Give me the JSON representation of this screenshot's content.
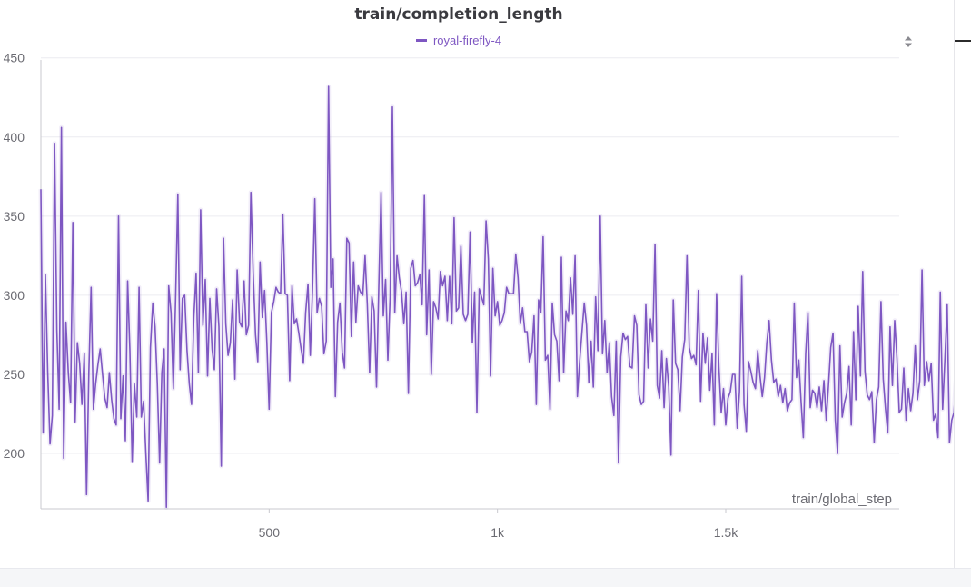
{
  "chart_data": {
    "type": "line",
    "title": "train/completion_length",
    "xlabel": "train/global_step",
    "ylabel": "",
    "xlim": [
      0,
      1880
    ],
    "ylim": [
      165,
      455
    ],
    "x_ticks": [
      500,
      1000,
      1500
    ],
    "x_tick_labels": [
      "500",
      "1k",
      "1.5k"
    ],
    "y_ticks": [
      200,
      250,
      300,
      350,
      400,
      450
    ],
    "y_tick_labels": [
      "200",
      "250",
      "300",
      "350",
      "400",
      "450"
    ],
    "grid": true,
    "legend_position": "top-center",
    "series": [
      {
        "name": "royal-firefly-4",
        "color": "#7e57c2",
        "x_start": 0,
        "x_step": 5,
        "values": [
          367,
          213,
          313,
          252,
          206,
          224,
          396,
          278,
          228,
          406,
          197,
          283,
          251,
          232,
          346,
          220,
          270,
          257,
          231,
          263,
          174,
          251,
          305,
          228,
          244,
          256,
          266,
          250,
          235,
          229,
          251,
          234,
          222,
          218,
          350,
          222,
          249,
          208,
          309,
          265,
          195,
          244,
          223,
          305,
          223,
          233,
          200,
          170,
          267,
          295,
          280,
          244,
          194,
          251,
          266,
          166,
          306,
          289,
          241,
          297,
          364,
          253,
          298,
          300,
          265,
          244,
          231,
          286,
          314,
          251,
          354,
          281,
          310,
          249,
          298,
          266,
          253,
          304,
          280,
          192,
          336,
          282,
          262,
          270,
          297,
          247,
          316,
          283,
          280,
          309,
          275,
          281,
          365,
          315,
          275,
          258,
          321,
          286,
          303,
          270,
          228,
          289,
          296,
          305,
          302,
          301,
          351,
          301,
          300,
          246,
          306,
          282,
          285,
          276,
          266,
          257,
          289,
          307,
          262,
          304,
          361,
          289,
          298,
          293,
          263,
          271,
          432,
          305,
          323,
          236,
          283,
          295,
          264,
          254,
          336,
          333,
          274,
          321,
          283,
          306,
          302,
          300,
          325,
          294,
          251,
          299,
          290,
          242,
          305,
          365,
          287,
          310,
          259,
          299,
          419,
          289,
          325,
          311,
          302,
          282,
          302,
          238,
          317,
          322,
          306,
          308,
          313,
          294,
          363,
          275,
          316,
          250,
          296,
          292,
          285,
          315,
          306,
          312,
          284,
          312,
          282,
          349,
          290,
          292,
          331,
          288,
          284,
          288,
          340,
          270,
          302,
          226,
          304,
          299,
          294,
          347,
          323,
          249,
          317,
          287,
          296,
          281,
          284,
          289,
          305,
          301,
          301,
          301,
          326,
          311,
          282,
          292,
          277,
          277,
          258,
          264,
          287,
          231,
          297,
          289,
          337,
          259,
          262,
          228,
          295,
          275,
          271,
          246,
          324,
          251,
          290,
          284,
          311,
          288,
          325,
          236,
          258,
          277,
          295,
          281,
          245,
          271,
          242,
          299,
          265,
          350,
          263,
          284,
          251,
          270,
          236,
          224,
          271,
          194,
          261,
          276,
          272,
          274,
          255,
          254,
          287,
          281,
          237,
          231,
          233,
          294,
          254,
          285,
          271,
          332,
          243,
          235,
          265,
          229,
          260,
          242,
          199,
          297,
          257,
          253,
          227,
          261,
          272,
          325,
          267,
          260,
          262,
          256,
          303,
          233,
          276,
          257,
          273,
          240,
          263,
          218,
          301,
          255,
          226,
          241,
          218,
          235,
          239,
          250,
          250,
          216,
          239,
          312,
          231,
          214,
          258,
          252,
          245,
          241,
          265,
          249,
          236,
          248,
          270,
          284,
          259,
          245,
          247,
          236,
          243,
          232,
          241,
          227,
          232,
          234,
          295,
          248,
          259,
          233,
          210,
          263,
          289,
          229,
          240,
          238,
          229,
          242,
          227,
          246,
          221,
          243,
          267,
          276,
          221,
          200,
          268,
          223,
          232,
          238,
          255,
          218,
          277,
          234,
          293,
          249,
          315,
          252,
          237,
          234,
          239,
          207,
          234,
          242,
          296,
          247,
          228,
          213,
          280,
          243,
          284,
          260,
          226,
          228,
          254,
          221,
          241,
          227,
          238,
          268,
          234,
          246,
          316,
          243,
          258,
          246,
          257,
          221,
          225,
          210,
          302,
          228,
          260,
          294,
          207,
          221,
          226,
          250,
          189,
          239,
          218,
          233,
          246,
          221,
          202,
          206,
          257,
          242,
          238,
          227,
          256,
          245,
          226,
          224,
          229,
          272,
          238,
          257,
          215,
          245
        ]
      }
    ]
  },
  "toolbar": {
    "sort_icon": "sort-arrows-icon"
  }
}
